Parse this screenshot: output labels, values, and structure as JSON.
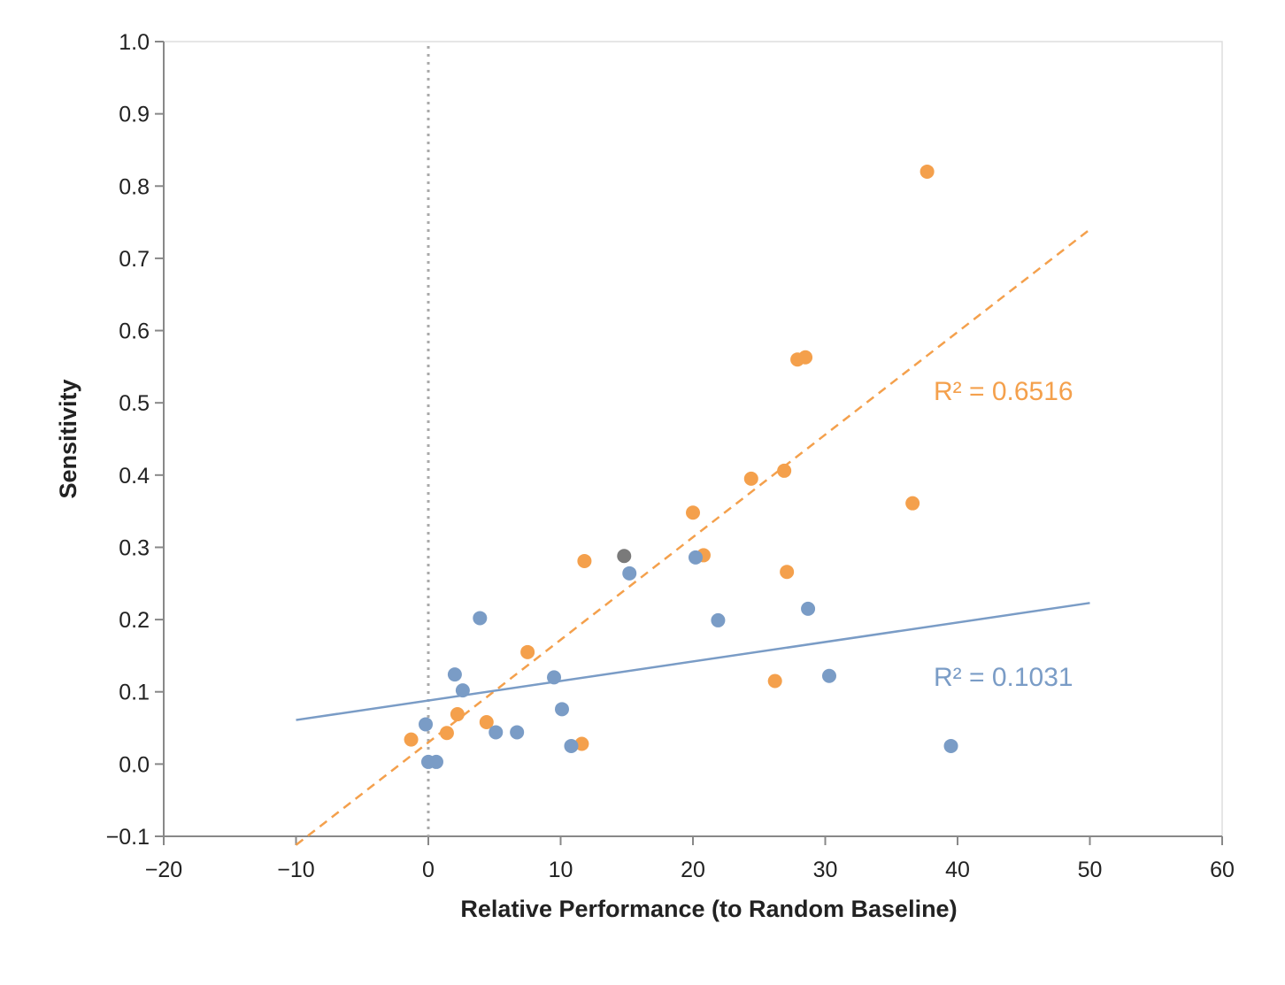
{
  "chart_data": {
    "type": "scatter",
    "xlabel": "Relative Performance (to Random Baseline)",
    "ylabel": "Sensitivity",
    "xlim": [
      -20,
      60
    ],
    "ylim": [
      -0.1,
      1.0
    ],
    "x_ticks": [
      -20,
      -10,
      0,
      10,
      20,
      30,
      40,
      50,
      60
    ],
    "y_ticks": [
      -0.1,
      0.0,
      0.1,
      0.2,
      0.3,
      0.4,
      0.5,
      0.6,
      0.7,
      0.8,
      0.9,
      1.0
    ],
    "x_tick_labels": [
      "−20",
      "−10",
      "0",
      "10",
      "20",
      "30",
      "40",
      "50",
      "60"
    ],
    "y_tick_labels": [
      "−0.1",
      "0.0",
      "0.1",
      "0.2",
      "0.3",
      "0.4",
      "0.5",
      "0.6",
      "0.7",
      "0.8",
      "0.9",
      "1.0"
    ],
    "grid": false,
    "reference_line": {
      "orientation": "vertical",
      "x": 0,
      "style": "dotted",
      "color": "#aaaaaa"
    },
    "series": [
      {
        "color": "#f4a04c",
        "points": [
          {
            "x": -1.3,
            "y": 0.034
          },
          {
            "x": 1.4,
            "y": 0.043
          },
          {
            "x": 2.2,
            "y": 0.069
          },
          {
            "x": 4.4,
            "y": 0.058
          },
          {
            "x": 7.5,
            "y": 0.155
          },
          {
            "x": 11.6,
            "y": 0.028
          },
          {
            "x": 11.8,
            "y": 0.281
          },
          {
            "x": 20.0,
            "y": 0.348
          },
          {
            "x": 20.8,
            "y": 0.289
          },
          {
            "x": 24.4,
            "y": 0.395
          },
          {
            "x": 26.2,
            "y": 0.115
          },
          {
            "x": 26.9,
            "y": 0.406
          },
          {
            "x": 27.1,
            "y": 0.266
          },
          {
            "x": 27.9,
            "y": 0.56
          },
          {
            "x": 28.5,
            "y": 0.563
          },
          {
            "x": 36.6,
            "y": 0.361
          },
          {
            "x": 37.7,
            "y": 0.82
          }
        ],
        "trendline": {
          "x": [
            -10,
            50
          ],
          "y": [
            -0.112,
            0.74
          ],
          "style": "dashed"
        },
        "r2_label": "R² = 0.6516"
      },
      {
        "color": "#7a9cc6",
        "points": [
          {
            "x": -0.2,
            "y": 0.055
          },
          {
            "x": 0.0,
            "y": 0.003
          },
          {
            "x": 0.6,
            "y": 0.003
          },
          {
            "x": 2.0,
            "y": 0.124
          },
          {
            "x": 2.6,
            "y": 0.102
          },
          {
            "x": 3.9,
            "y": 0.202
          },
          {
            "x": 5.1,
            "y": 0.044
          },
          {
            "x": 6.7,
            "y": 0.044
          },
          {
            "x": 9.5,
            "y": 0.12
          },
          {
            "x": 10.1,
            "y": 0.076
          },
          {
            "x": 10.8,
            "y": 0.025
          },
          {
            "x": 15.2,
            "y": 0.264
          },
          {
            "x": 20.2,
            "y": 0.286
          },
          {
            "x": 21.9,
            "y": 0.199
          },
          {
            "x": 28.7,
            "y": 0.215
          },
          {
            "x": 30.3,
            "y": 0.122
          },
          {
            "x": 39.5,
            "y": 0.025
          }
        ],
        "trendline": {
          "x": [
            -10,
            50
          ],
          "y": [
            0.061,
            0.223
          ],
          "style": "solid"
        },
        "r2_label": "R² = 0.1031"
      },
      {
        "color": "#7a7a7a",
        "points": [
          {
            "x": 14.8,
            "y": 0.288
          }
        ]
      }
    ]
  }
}
